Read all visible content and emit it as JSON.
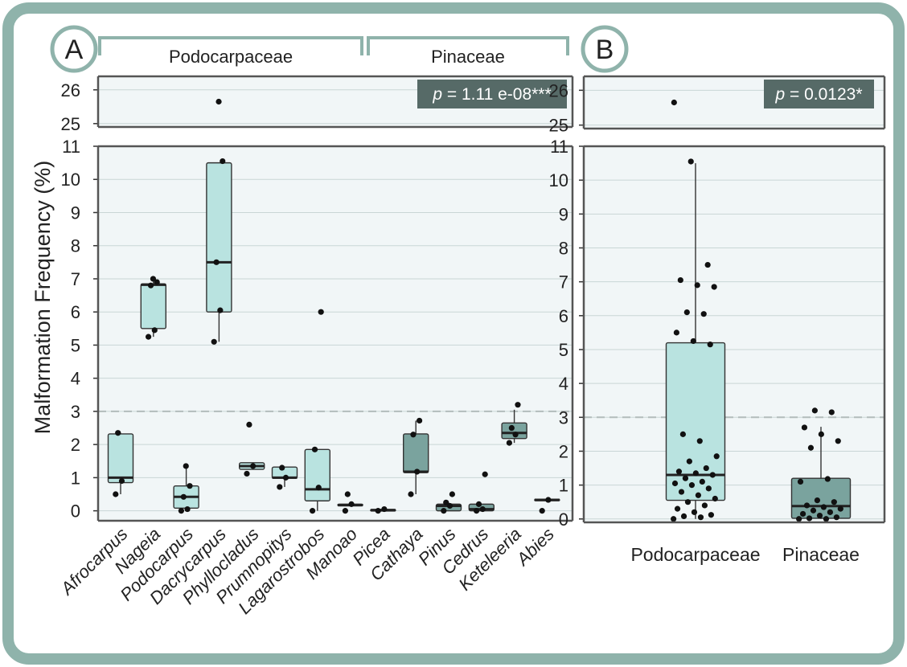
{
  "figure": {
    "colors": {
      "frame": "#8fb3ab",
      "panel_bg": "#f1f6f7",
      "podocarpaceae_box": "#b9e3e0",
      "pinaceae_box": "#7aa39e",
      "threshold_line": "#b3bcbb",
      "badge_bg": "#566a67",
      "point": "#111111"
    }
  },
  "chart_data": [
    {
      "type": "box",
      "panel_label": "A",
      "ylabel": "Malformation Frequency (%)",
      "group_labels": [
        {
          "name": "Podocarpaceae",
          "first": 0,
          "last": 7
        },
        {
          "name": "Pinaceae",
          "first": 8,
          "last": 13
        }
      ],
      "annotation": {
        "italic": "p",
        "text": " = 1.11 e-08***"
      },
      "threshold": 3,
      "y_axis": {
        "broken": true,
        "lower_range": [
          -0.3,
          11
        ],
        "upper_range": [
          24.9,
          26.4
        ],
        "lower_ticks": [
          "0",
          "1",
          "2",
          "3",
          "4",
          "5",
          "6",
          "7",
          "8",
          "9",
          "10",
          "11"
        ],
        "upper_ticks": [
          "25",
          "26"
        ]
      },
      "categories": [
        "Afrocarpus",
        "Nageia",
        "Podocarpus",
        "Dacrycarpus",
        "Phyllocladus",
        "Prumnopitys",
        "Lagarostrobos",
        "Manoao",
        "Picea",
        "Cathaya",
        "Pinus",
        "Cedrus",
        "Keteleeria",
        "Abies"
      ],
      "boxes": [
        {
          "family": "Podocarpaceae",
          "q1": 0.85,
          "median": 1.0,
          "q3": 2.32,
          "whisker_low": 0.5,
          "whisker_high": 2.35,
          "points": [
            0.5,
            0.9,
            2.35
          ]
        },
        {
          "family": "Podocarpaceae",
          "q1": 5.5,
          "median": 6.82,
          "q3": 6.85,
          "whisker_low": 5.25,
          "whisker_high": 7.0,
          "points": [
            5.25,
            5.45,
            6.8,
            6.9,
            7.0
          ]
        },
        {
          "family": "Podocarpaceae",
          "q1": 0.08,
          "median": 0.42,
          "q3": 0.75,
          "whisker_low": 0.0,
          "whisker_high": 1.35,
          "points": [
            0.0,
            0.05,
            0.42,
            0.75,
            1.35
          ]
        },
        {
          "family": "Podocarpaceae",
          "q1": 6.0,
          "median": 7.5,
          "q3": 10.5,
          "whisker_low": 5.1,
          "whisker_high": 10.5,
          "points": [
            5.1,
            6.05,
            7.5,
            10.55,
            25.65
          ]
        },
        {
          "family": "Podocarpaceae",
          "q1": 1.25,
          "median": 1.35,
          "q3": 1.45,
          "whisker_low": 1.25,
          "whisker_high": 1.45,
          "points": [
            1.12,
            1.35,
            2.6
          ]
        },
        {
          "family": "Podocarpaceae",
          "q1": 0.98,
          "median": 1.0,
          "q3": 1.32,
          "whisker_low": 0.72,
          "whisker_high": 1.32,
          "points": [
            0.72,
            1.0,
            1.3
          ]
        },
        {
          "family": "Podocarpaceae",
          "q1": 0.3,
          "median": 0.65,
          "q3": 1.85,
          "whisker_low": 0.0,
          "whisker_high": 1.85,
          "points": [
            0.0,
            0.7,
            1.85,
            6.0
          ]
        },
        {
          "family": "Podocarpaceae",
          "q1": 0.15,
          "median": 0.17,
          "q3": 0.2,
          "whisker_low": 0.15,
          "whisker_high": 0.2,
          "points": [
            0.0,
            0.2,
            0.5
          ]
        },
        {
          "family": "Pinaceae",
          "q1": 0.0,
          "median": 0.02,
          "q3": 0.04,
          "whisker_low": 0.0,
          "whisker_high": 0.04,
          "points": [
            0.0,
            0.05
          ]
        },
        {
          "family": "Pinaceae",
          "q1": 1.15,
          "median": 1.18,
          "q3": 2.32,
          "whisker_low": 0.5,
          "whisker_high": 2.72,
          "points": [
            0.5,
            1.18,
            2.3,
            2.72
          ]
        },
        {
          "family": "Pinaceae",
          "q1": 0.0,
          "median": 0.15,
          "q3": 0.2,
          "whisker_low": 0.0,
          "whisker_high": 0.25,
          "points": [
            0.0,
            0.15,
            0.25,
            0.5
          ]
        },
        {
          "family": "Pinaceae",
          "q1": 0.0,
          "median": 0.05,
          "q3": 0.2,
          "whisker_low": 0.0,
          "whisker_high": 0.2,
          "points": [
            0.0,
            0.05,
            0.2,
            1.1
          ]
        },
        {
          "family": "Pinaceae",
          "q1": 2.18,
          "median": 2.35,
          "q3": 2.65,
          "whisker_low": 2.05,
          "whisker_high": 3.05,
          "points": [
            2.05,
            2.3,
            2.5,
            3.2
          ]
        },
        {
          "family": "Pinaceae",
          "q1": 0.32,
          "median": 0.33,
          "q3": 0.35,
          "whisker_low": 0.32,
          "whisker_high": 0.35,
          "points": [
            0.0,
            0.33
          ]
        }
      ]
    },
    {
      "type": "box",
      "panel_label": "B",
      "ylabel": "",
      "annotation": {
        "italic": "p",
        "text": " = 0.0123*"
      },
      "threshold": 3,
      "y_axis": {
        "broken": true,
        "lower_range": [
          -0.1,
          11
        ],
        "upper_range": [
          24.9,
          26.4
        ],
        "lower_ticks": [
          "0",
          "1",
          "2",
          "3",
          "4",
          "5",
          "6",
          "7",
          "8",
          "9",
          "10",
          "11"
        ],
        "upper_ticks": [
          "25",
          "26"
        ]
      },
      "categories": [
        "Podocarpaceae",
        "Pinaceae"
      ],
      "boxes": [
        {
          "family": "Podocarpaceae",
          "q1": 0.55,
          "median": 1.3,
          "q3": 5.2,
          "whisker_low": 0.0,
          "whisker_high": 10.5,
          "points": [
            0.0,
            0.05,
            0.08,
            0.12,
            0.2,
            0.3,
            0.4,
            0.5,
            0.6,
            0.7,
            0.8,
            0.9,
            1.0,
            1.05,
            1.1,
            1.2,
            1.3,
            1.35,
            1.4,
            1.5,
            1.7,
            1.85,
            2.3,
            2.5,
            5.15,
            5.25,
            5.5,
            6.05,
            6.1,
            6.85,
            6.9,
            7.05,
            7.5,
            10.55,
            25.65
          ]
        },
        {
          "family": "Pinaceae",
          "q1": 0.02,
          "median": 0.38,
          "q3": 1.2,
          "whisker_low": 0.0,
          "whisker_high": 2.72,
          "points": [
            0.0,
            0.0,
            0.02,
            0.05,
            0.1,
            0.15,
            0.2,
            0.25,
            0.3,
            0.35,
            0.4,
            0.5,
            0.55,
            1.1,
            1.18,
            2.1,
            2.3,
            2.5,
            2.7,
            3.15,
            3.2
          ]
        }
      ]
    }
  ]
}
